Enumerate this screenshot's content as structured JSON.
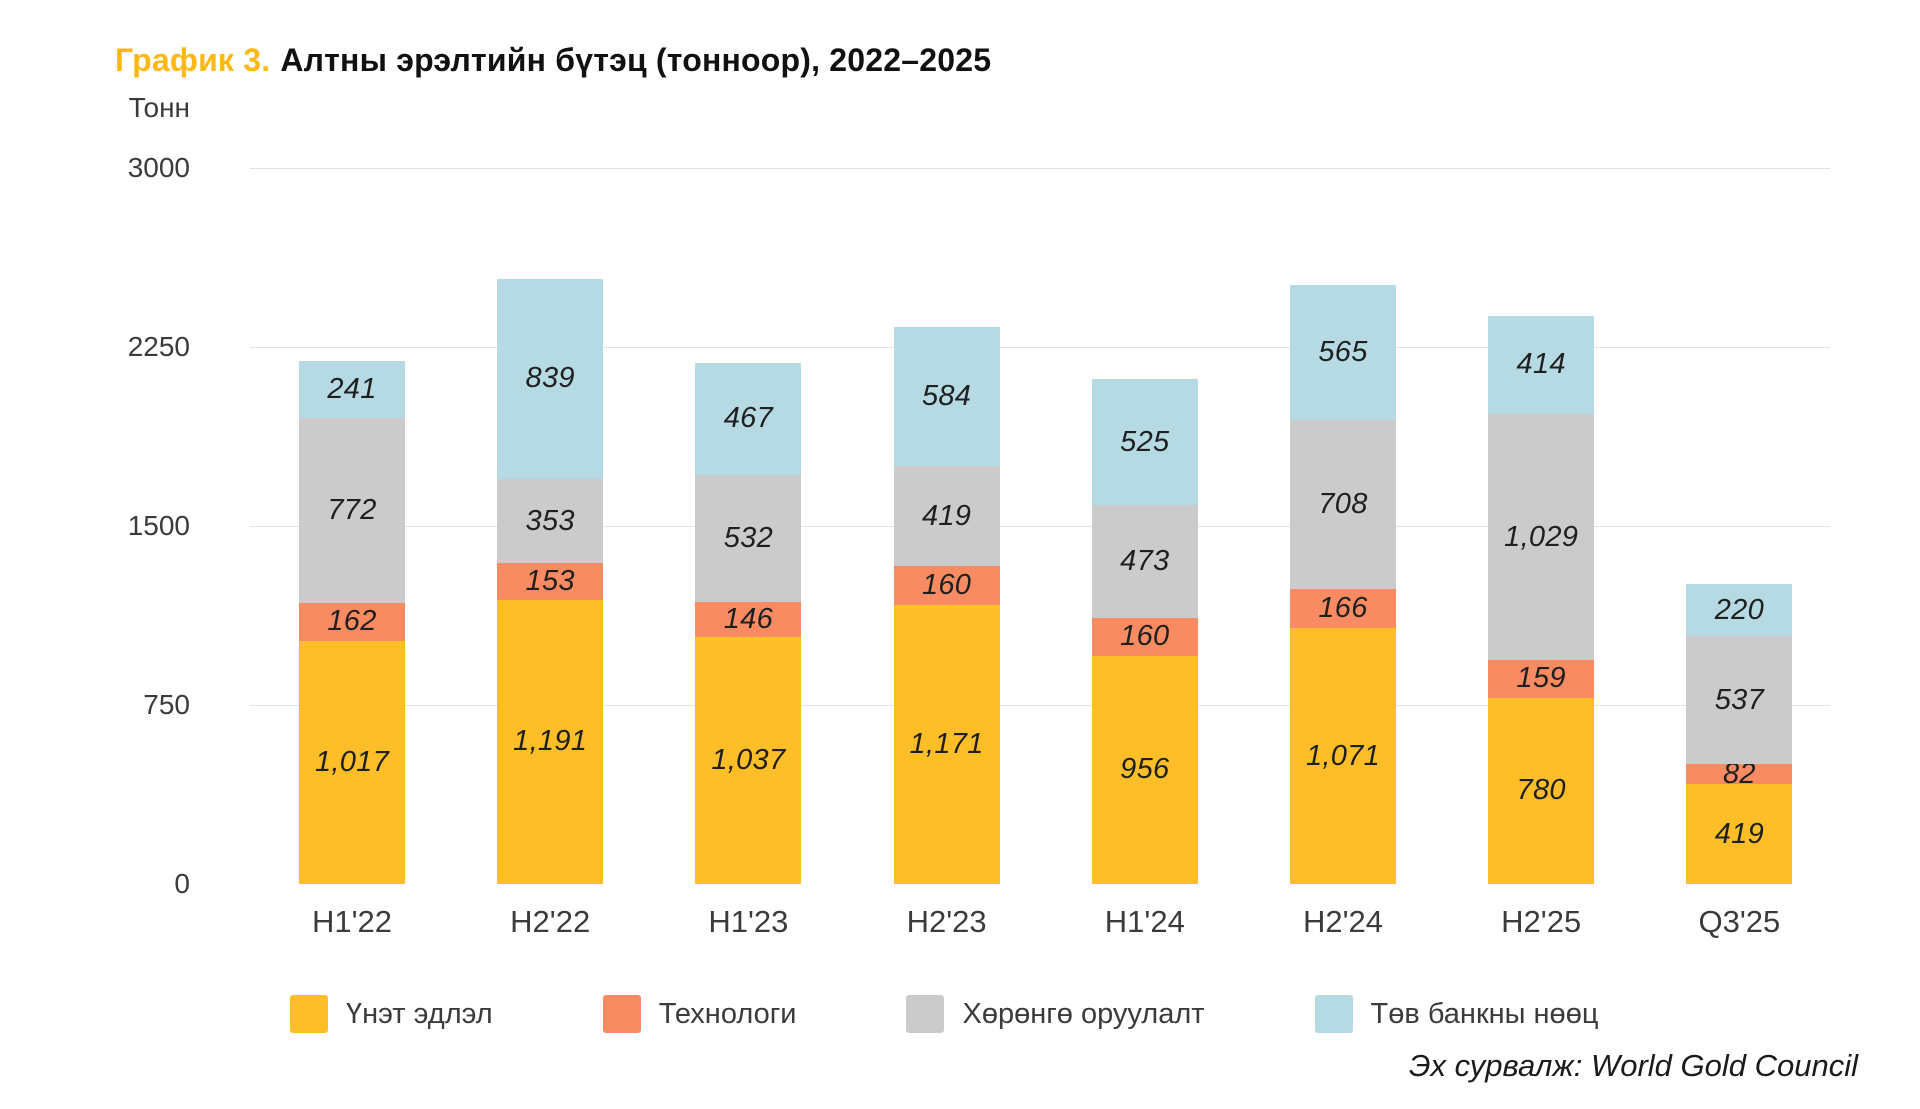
{
  "header": {
    "title_prefix": "График 3.",
    "title_text": "Алтны эрэлтийн бүтэц (тонноор), 2022–2025"
  },
  "chart_data": {
    "type": "bar",
    "stacked": true,
    "title": "Алтны эрэлтийн бүтэц (тонноор), 2022–2025",
    "unit_label": "Тонн",
    "categories": [
      "H1'22",
      "H2'22",
      "H1'23",
      "H2'23",
      "H1'24",
      "H2'24",
      "H2'25",
      "Q3'25"
    ],
    "series": [
      {
        "name": "Үнэт эдлэл",
        "color": "#FDBE27",
        "values": [
          1017,
          1191,
          1037,
          1171,
          956,
          1071,
          780,
          419
        ]
      },
      {
        "name": "Технологи",
        "color": "#F98B63",
        "values": [
          162,
          153,
          146,
          160,
          160,
          166,
          159,
          82
        ]
      },
      {
        "name": "Хөрөнгө оруулалт",
        "color": "#CBCBCB",
        "values": [
          772,
          353,
          532,
          419,
          473,
          708,
          1029,
          537
        ]
      },
      {
        "name": "Төв банкны нөөц",
        "color": "#B6DAE4",
        "values": [
          241,
          839,
          467,
          584,
          525,
          565,
          414,
          220
        ]
      }
    ],
    "y_axis": {
      "min": 0,
      "max": 3000,
      "ticks": [
        0,
        750,
        1500,
        2250,
        3000
      ]
    },
    "grid": true,
    "legend_position": "bottom",
    "value_labels": "inside-segments, comma-separated thousands, italic"
  },
  "colors": {
    "title_accent": "#FDB813",
    "gridline": "#e3e3e3",
    "axis_text": "#3b3b3b",
    "value_text": "#1f1f1f"
  },
  "source": "Эх сурвалж: World Gold Council"
}
